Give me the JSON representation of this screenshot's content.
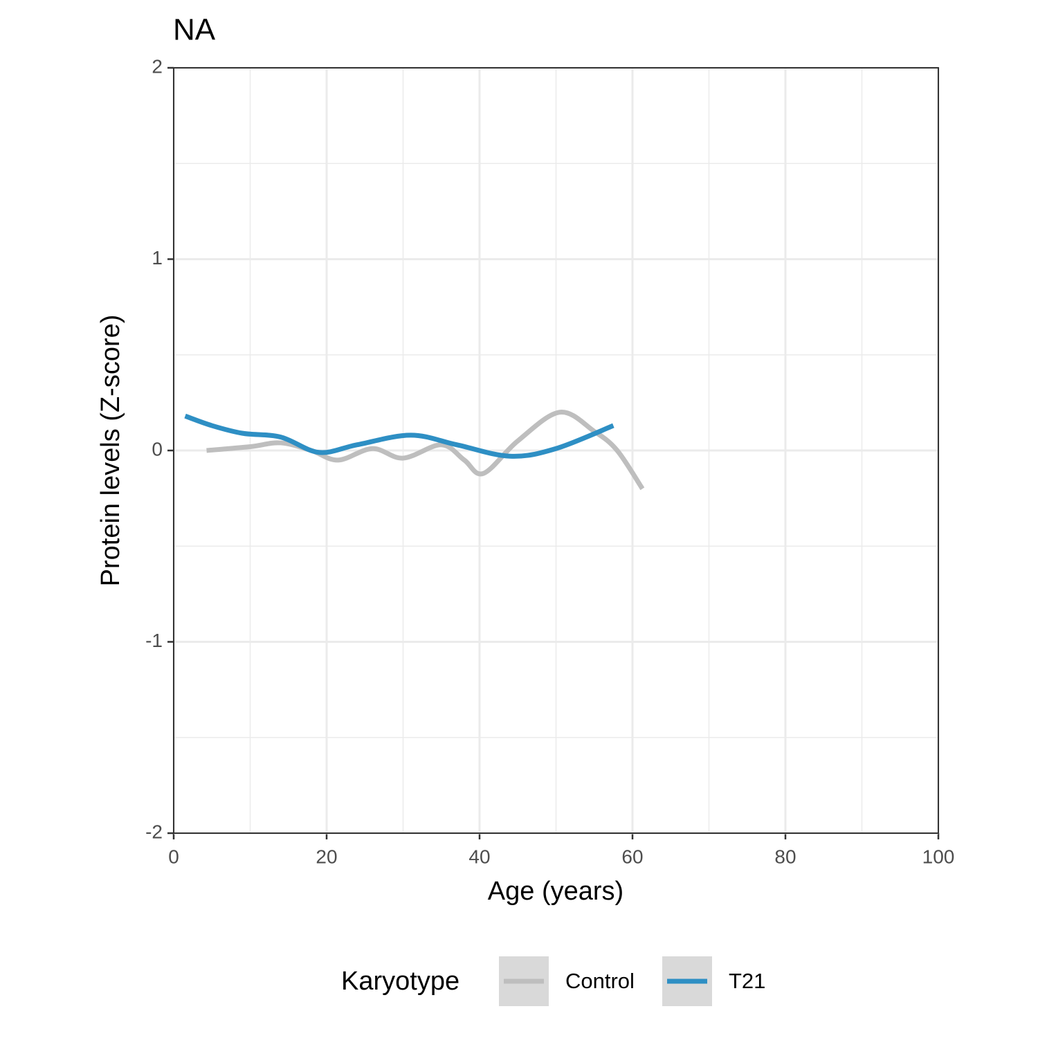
{
  "chart_data": {
    "type": "line",
    "title": "NA",
    "x_label": "Age (years)",
    "y_label": "Protein levels (Z-score)",
    "legend_title": "Karyotype",
    "legend_position": "bottom",
    "grid": true,
    "xlim": [
      0,
      100
    ],
    "xticks": [
      0,
      20,
      40,
      60,
      80,
      100
    ],
    "ylim": [
      -2,
      2
    ],
    "yticks": [
      -2,
      -1,
      0,
      1,
      2
    ],
    "series": [
      {
        "name": "Control",
        "color": "#bebebe",
        "x": [
          4.3,
          10,
          14,
          18,
          21.5,
          26,
          30,
          35,
          38,
          40.5,
          45,
          50.5,
          55,
          58,
          61.3
        ],
        "values": [
          0.0,
          0.02,
          0.04,
          0.0,
          -0.05,
          0.01,
          -0.04,
          0.03,
          -0.05,
          -0.12,
          0.05,
          0.2,
          0.1,
          0.0,
          -0.2
        ]
      },
      {
        "name": "T21",
        "color": "#2e8fc4",
        "x": [
          1.5,
          5,
          9,
          14,
          19,
          24,
          31,
          37,
          44,
          50,
          57.5
        ],
        "values": [
          0.18,
          0.13,
          0.09,
          0.07,
          -0.01,
          0.03,
          0.08,
          0.03,
          -0.03,
          0.01,
          0.13
        ]
      }
    ]
  }
}
